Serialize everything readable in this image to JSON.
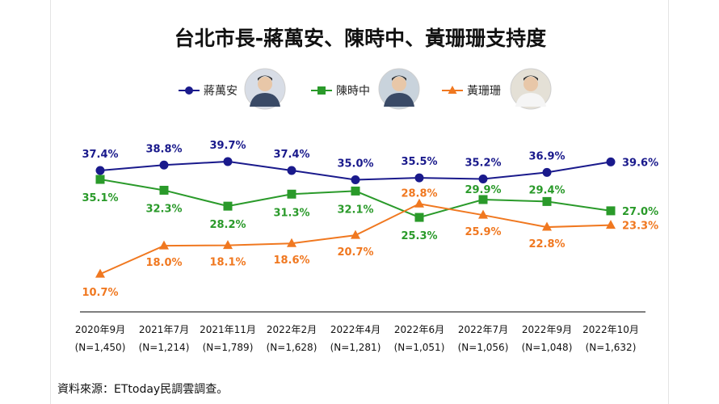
{
  "chart_data": {
    "type": "line",
    "title": "台北市長-蔣萬安、陳時中、黃珊珊支持度",
    "categories": [
      {
        "label": "2020年9月",
        "n": "(N=1,450)"
      },
      {
        "label": "2021年7月",
        "n": "(N=1,214)"
      },
      {
        "label": "2021年11月",
        "n": "(N=1,789)"
      },
      {
        "label": "2022年2月",
        "n": "(N=1,628)"
      },
      {
        "label": "2022年4月",
        "n": "(N=1,281)"
      },
      {
        "label": "2022年6月",
        "n": "(N=1,051)"
      },
      {
        "label": "2022年7月",
        "n": "(N=1,056)"
      },
      {
        "label": "2022年9月",
        "n": "(N=1,048)"
      },
      {
        "label": "2022年10月",
        "n": "(N=1,632)"
      }
    ],
    "series": [
      {
        "name": "蔣萬安",
        "color": "#1a1a8c",
        "marker": "circle",
        "values": [
          37.4,
          38.8,
          39.7,
          37.4,
          35.0,
          35.5,
          35.2,
          36.9,
          39.6
        ],
        "labels": [
          "37.4%",
          "38.8%",
          "39.7%",
          "37.4%",
          "35.0%",
          "35.5%",
          "35.2%",
          "36.9%",
          "39.6%"
        ]
      },
      {
        "name": "陳時中",
        "color": "#2a9a2a",
        "marker": "square",
        "values": [
          35.1,
          32.3,
          28.2,
          31.3,
          32.1,
          25.3,
          29.9,
          29.4,
          27.0
        ],
        "labels": [
          "35.1%",
          "32.3%",
          "28.2%",
          "31.3%",
          "32.1%",
          "25.3%",
          "29.9%",
          "29.4%",
          "27.0%"
        ]
      },
      {
        "name": "黃珊珊",
        "color": "#f07820",
        "marker": "triangle",
        "values": [
          10.7,
          18.0,
          18.1,
          18.6,
          20.7,
          28.8,
          25.9,
          22.8,
          23.3
        ],
        "labels": [
          "10.7%",
          "18.0%",
          "18.1%",
          "18.6%",
          "20.7%",
          "28.8%",
          "25.9%",
          "22.8%",
          "23.3%"
        ]
      }
    ],
    "y_unit": "%",
    "grid": false,
    "legend_position": "top"
  },
  "source": "資料來源：ETtoday民調雲調查。"
}
